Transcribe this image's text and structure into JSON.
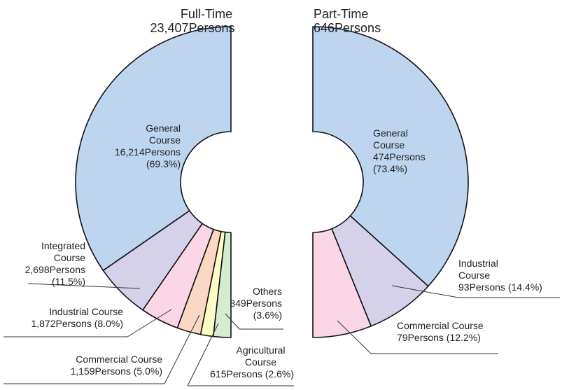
{
  "chart_data": [
    {
      "type": "pie",
      "title": "Full-Time",
      "subtitle": "23,407Persons",
      "categories": [
        "General Course",
        "Integrated Course",
        "Industrial Course",
        "Commercial Course",
        "Agricultural Course",
        "Others"
      ],
      "values": [
        16214,
        2698,
        1872,
        1159,
        615,
        849
      ],
      "value_labels": [
        "16,214Persons",
        "2,698Persons",
        "1,872Persons",
        "1,159Persons",
        "615Persons",
        "849Persons"
      ],
      "percent_labels": [
        "(69.3%)",
        "(11.5%)",
        "(8.0%)",
        "(5.0%)",
        "(2.6%)",
        "(3.6%)"
      ],
      "colors": [
        "#bed5ef",
        "#d5d1e9",
        "#fad6e6",
        "#fbd8c4",
        "#fdfdc6",
        "#d7ebd1"
      ]
    },
    {
      "type": "pie",
      "title": "Part-Time",
      "subtitle": "646Persons",
      "categories": [
        "General Course",
        "Industrial Course",
        "Commercial Course"
      ],
      "values": [
        474,
        93,
        79
      ],
      "value_labels": [
        "474Persons",
        "93Persons",
        "79Persons"
      ],
      "percent_labels": [
        "(73.4%)",
        "(14.4%)",
        "(12.2%)"
      ],
      "colors": [
        "#bed5ef",
        "#d5d1e9",
        "#fad6e6"
      ]
    }
  ]
}
